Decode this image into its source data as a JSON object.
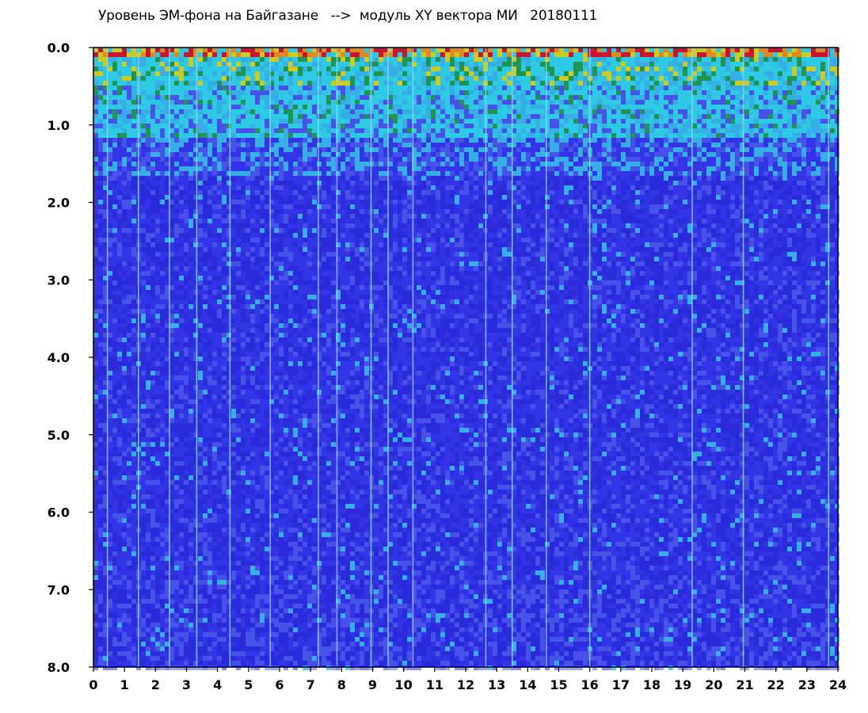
{
  "title": "Уровень ЭМ-фона на Байгазане   -->  модуль XY вектора МИ   20180111",
  "chart_data": {
    "type": "heatmap",
    "title": "Уровень ЭМ-фона на Байгазане   -->  модуль XY вектора МИ   20180111",
    "xlabel": "",
    "ylabel": "",
    "xlim": [
      0,
      24
    ],
    "ylim": [
      0,
      8
    ],
    "y_inverted": true,
    "x_ticks": [
      "0",
      "1",
      "2",
      "3",
      "4",
      "5",
      "6",
      "7",
      "8",
      "9",
      "10",
      "11",
      "12",
      "13",
      "14",
      "15",
      "16",
      "17",
      "18",
      "19",
      "20",
      "21",
      "22",
      "23",
      "24"
    ],
    "y_ticks": [
      "0.0",
      "1.0",
      "2.0",
      "3.0",
      "4.0",
      "5.0",
      "6.0",
      "7.0",
      "8.0"
    ],
    "colormap": [
      "#1f1fe0",
      "#3b3bee",
      "#5a6cf0",
      "#37c7e8",
      "#2fe6e6",
      "#1fa83a",
      "#e8e800",
      "#ff9a00",
      "#e81010"
    ],
    "background_color": "#2b2bdc",
    "grid": false,
    "legend": "none",
    "bright_vertical_lines_x": [
      0.45,
      1.45,
      2.45,
      3.33,
      4.4,
      5.7,
      7.25,
      7.85,
      8.95,
      9.5,
      10.3,
      12.65,
      13.5,
      14.6,
      16.0,
      19.3,
      20.95,
      23.7
    ]
  }
}
